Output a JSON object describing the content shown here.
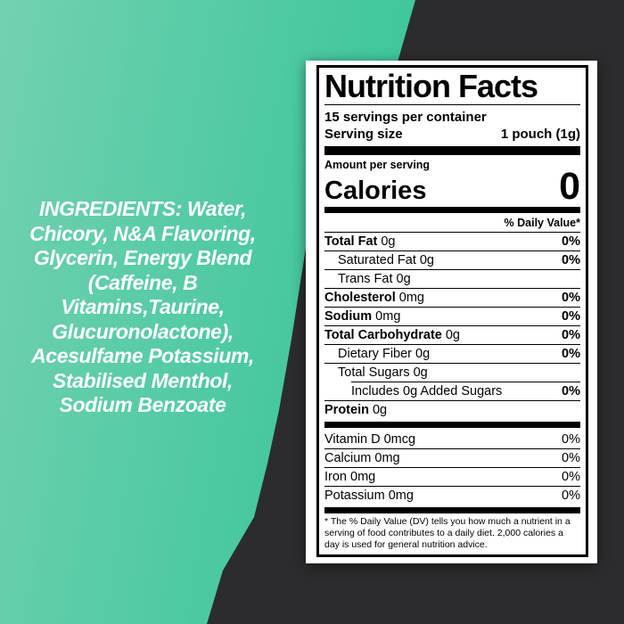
{
  "colors": {
    "background_dark": "#2c2c2e",
    "accent_green_light": "#72d1b0",
    "accent_green_deep": "#2cc394",
    "label_background": "#ffffff",
    "label_text": "#000000",
    "ingredients_text": "#ffffff"
  },
  "ingredients": {
    "lines": [
      "INGREDIENTS: Water,",
      "Chicory, N&A Flavoring,",
      "Glycerin, Energy Blend",
      "(Caffeine, B",
      "Vitamins,Taurine,",
      "Glucuronolactone),",
      "Acesulfame Potassium,",
      "Stabilised Menthol,",
      "Sodium Benzoate"
    ]
  },
  "label": {
    "title": "Nutrition Facts",
    "servings_per_container": "15 servings per container",
    "serving_size_label": "Serving size",
    "serving_size_value": "1 pouch (1g)",
    "amount_per_serving": "Amount per serving",
    "calories_label": "Calories",
    "calories_value": "0",
    "daily_value_header": "% Daily Value*",
    "rows": [
      {
        "name": "Total Fat",
        "amount": "0g",
        "dv": "0%"
      },
      {
        "name": "Saturated Fat",
        "amount": "0g",
        "dv": "0%"
      },
      {
        "name": "Trans Fat",
        "amount": "0g",
        "dv": ""
      },
      {
        "name": "Cholesterol",
        "amount": "0mg",
        "dv": "0%"
      },
      {
        "name": "Sodium",
        "amount": "0mg",
        "dv": "0%"
      },
      {
        "name": "Total Carbohydrate",
        "amount": "0g",
        "dv": "0%"
      },
      {
        "name": "Dietary Fiber",
        "amount": "0g",
        "dv": "0%"
      },
      {
        "name": "Total Sugars",
        "amount": "0g",
        "dv": ""
      },
      {
        "name": "Includes 0g Added Sugars",
        "amount": "",
        "dv": "0%"
      },
      {
        "name": "Protein",
        "amount": "0g",
        "dv": ""
      }
    ],
    "micronutrients": [
      {
        "name": "Vitamin D",
        "amount": "0mcg",
        "dv": "0%"
      },
      {
        "name": "Calcium",
        "amount": "0mg",
        "dv": "0%"
      },
      {
        "name": "Iron",
        "amount": "0mg",
        "dv": "0%"
      },
      {
        "name": "Potassium",
        "amount": "0mg",
        "dv": "0%"
      }
    ],
    "footnote": "* The % Daily Value (DV) tells you how much a nutrient in a serving of food contributes to a daily diet. 2,000 calories a day is used for general nutrition advice."
  }
}
